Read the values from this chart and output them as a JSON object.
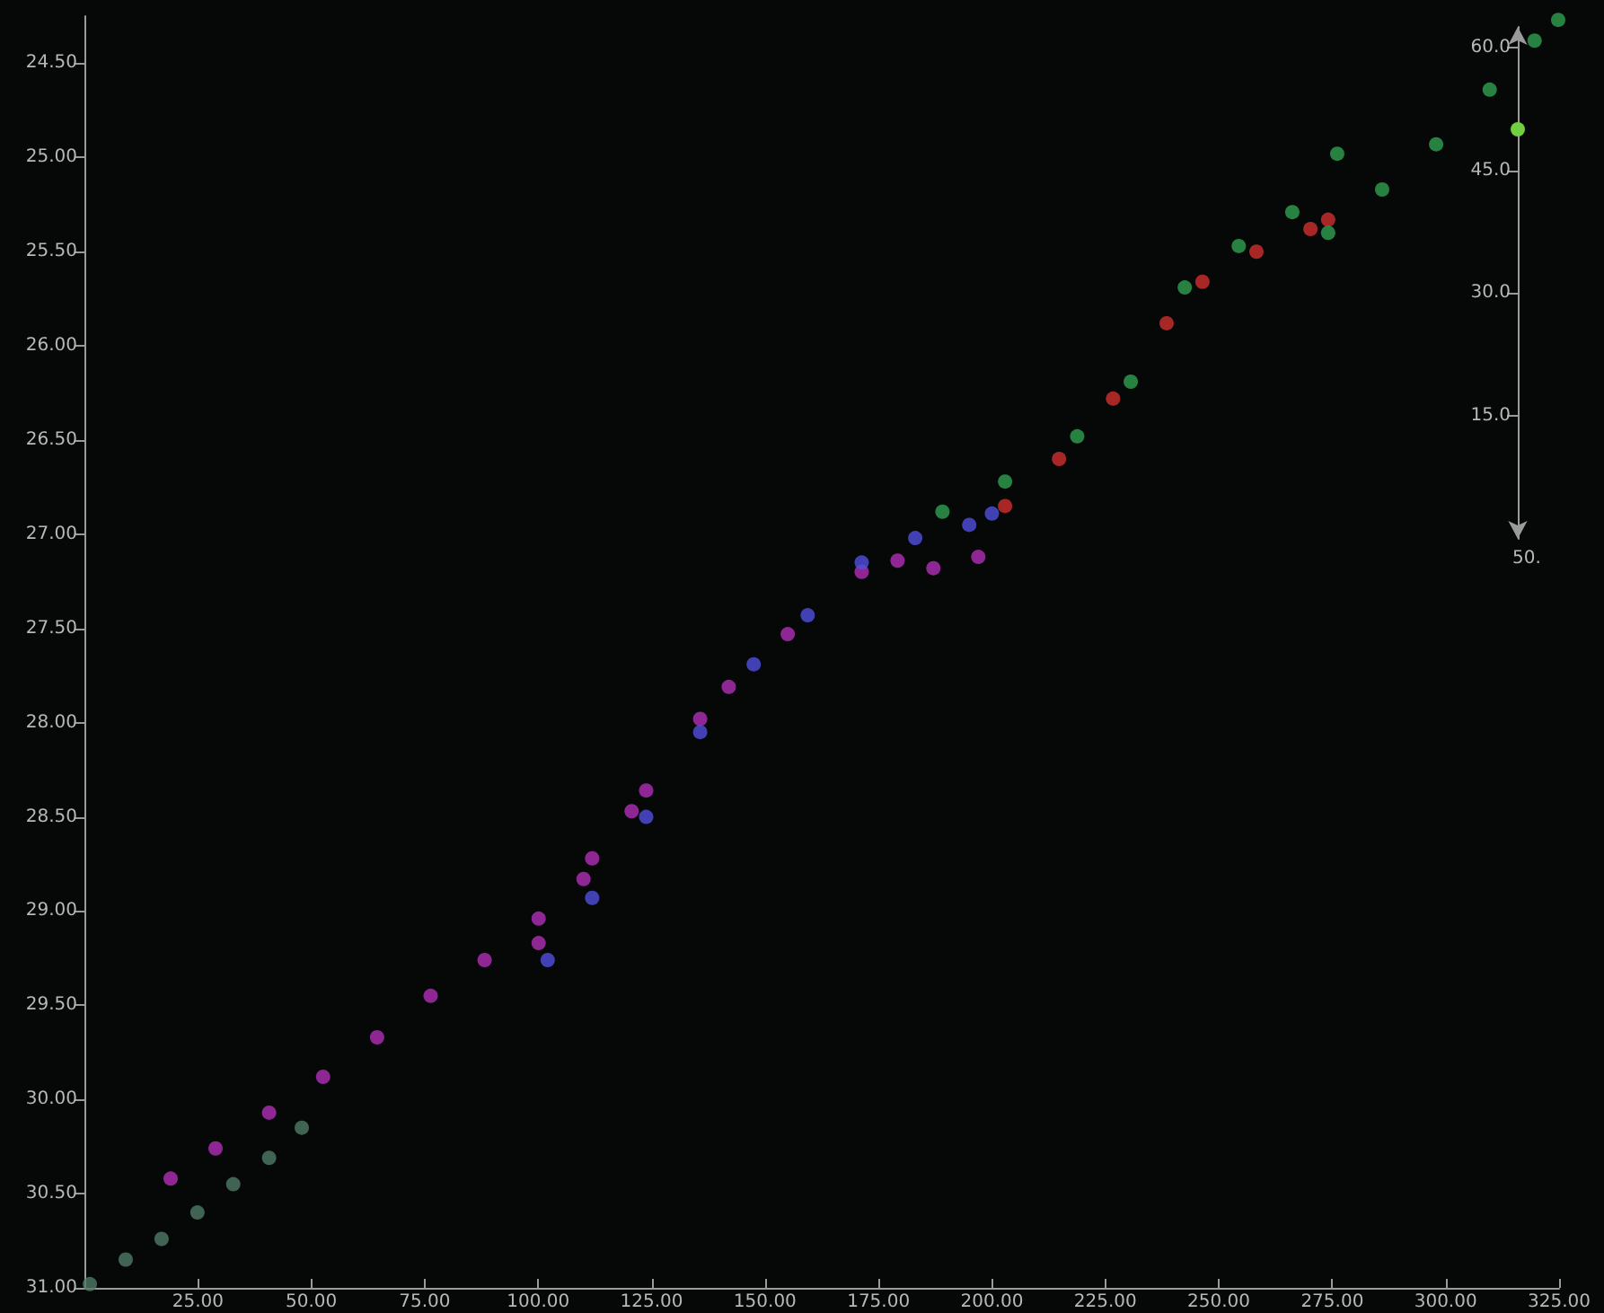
{
  "chart_data": {
    "type": "scatter",
    "marker": "circle",
    "grid": false,
    "xlim": [
      0,
      325
    ],
    "ylim": [
      31,
      24.25
    ],
    "xticks": [
      {
        "value": 25,
        "label": "25.00"
      },
      {
        "value": 50,
        "label": "50.00"
      },
      {
        "value": 75,
        "label": "75.00"
      },
      {
        "value": 100,
        "label": "100.00"
      },
      {
        "value": 125,
        "label": "125.00"
      },
      {
        "value": 150,
        "label": "150.00"
      },
      {
        "value": 175,
        "label": "175.00"
      },
      {
        "value": 200,
        "label": "200.00"
      },
      {
        "value": 225,
        "label": "225.00"
      },
      {
        "value": 250,
        "label": "250.00"
      },
      {
        "value": 275,
        "label": "275.00"
      },
      {
        "value": 300,
        "label": "300.00"
      },
      {
        "value": 325,
        "label": "325.00"
      }
    ],
    "yticks": [
      {
        "value": 24.5,
        "label": "24.50"
      },
      {
        "value": 25,
        "label": "25.00"
      },
      {
        "value": 25.5,
        "label": "25.50"
      },
      {
        "value": 26,
        "label": "26.00"
      },
      {
        "value": 26.5,
        "label": "26.50"
      },
      {
        "value": 27,
        "label": "27.00"
      },
      {
        "value": 27.5,
        "label": "27.50"
      },
      {
        "value": 28,
        "label": "28.00"
      },
      {
        "value": 28.5,
        "label": "28.50"
      },
      {
        "value": 29,
        "label": "29.00"
      },
      {
        "value": 29.5,
        "label": "29.50"
      },
      {
        "value": 30,
        "label": "30.00"
      },
      {
        "value": 30.5,
        "label": "30.50"
      },
      {
        "value": 31,
        "label": "31.00"
      }
    ],
    "y2lim": [
      0,
      62.5
    ],
    "y2ticks": [
      {
        "value": 15,
        "label": "15.0"
      },
      {
        "value": 30,
        "label": "30.0"
      },
      {
        "value": 45,
        "label": "45.0"
      },
      {
        "value": 60,
        "label": "60.0"
      }
    ],
    "annotations": [
      "50."
    ],
    "series": [
      {
        "color": "#4f7a68",
        "x": [
          1.2,
          9.1,
          17.0,
          24.9,
          32.8,
          40.7,
          47.9
        ],
        "values": [
          30.98,
          30.85,
          30.74,
          30.6,
          30.45,
          30.31,
          30.15
        ]
      },
      {
        "color": "#b030b8",
        "x": [
          19.0,
          28.9,
          40.7,
          52.6,
          64.5,
          76.3,
          88.2,
          100.1,
          111.9,
          123.8,
          135.7,
          142.0,
          155.0,
          171.3,
          179.2,
          187.1,
          197.0,
          100.1,
          110.0,
          120.6
        ],
        "values": [
          30.42,
          30.26,
          30.07,
          29.88,
          29.67,
          29.45,
          29.26,
          29.04,
          28.72,
          28.36,
          27.98,
          27.81,
          27.53,
          27.2,
          27.14,
          27.18,
          27.12,
          29.17,
          28.83,
          28.47
        ]
      },
      {
        "color": "#5050e0",
        "x": [
          102.1,
          111.9,
          123.8,
          135.7,
          147.5,
          159.4,
          171.3,
          183.1,
          195.0,
          200.0
        ],
        "values": [
          29.26,
          28.93,
          28.5,
          28.05,
          27.69,
          27.43,
          27.15,
          27.02,
          26.95,
          26.89
        ]
      },
      {
        "color": "#d03030",
        "x": [
          202.9,
          214.8,
          226.7,
          238.5,
          246.4,
          258.3,
          270.2,
          274.1
        ],
        "values": [
          26.85,
          26.6,
          26.28,
          25.88,
          25.66,
          25.5,
          25.38,
          25.33
        ]
      },
      {
        "color": "#2fa050",
        "x": [
          189.1,
          202.9,
          218.8,
          230.6,
          242.5,
          254.4,
          266.2,
          276.1,
          274.1,
          286.0,
          297.9,
          309.7,
          319.6,
          324.8
        ],
        "values": [
          26.88,
          26.72,
          26.48,
          26.19,
          25.69,
          25.47,
          25.29,
          24.98,
          25.4,
          25.17,
          24.93,
          24.64,
          24.38,
          24.27
        ]
      }
    ]
  }
}
